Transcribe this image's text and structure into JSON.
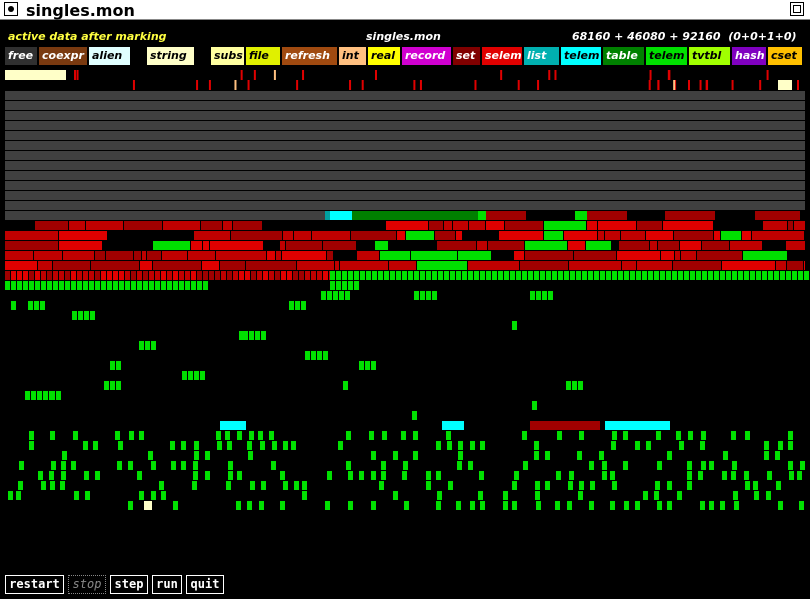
{
  "window": {
    "title": "singles.mon"
  },
  "status": {
    "phase": "active data after marking",
    "file": "singles.mon",
    "sizes": "68160 + 46080 + 92160  (0+0+1+0)"
  },
  "legend": [
    {
      "label": "free",
      "color": "#303030"
    },
    {
      "label": "coexpr",
      "color": "#7a3a10"
    },
    {
      "label": "alien",
      "color": "#e0ffff"
    },
    {
      "label": "string",
      "color": "#ffffc8"
    },
    {
      "label": "subs",
      "color": "#ffffa0"
    },
    {
      "label": "file",
      "color": "#e0f000"
    },
    {
      "label": "refresh",
      "color": "#a04a10"
    },
    {
      "label": "int",
      "color": "#ffc080"
    },
    {
      "label": "real",
      "color": "#ffff00"
    },
    {
      "label": "record",
      "color": "#d000d0"
    },
    {
      "label": "set",
      "color": "#800000"
    },
    {
      "label": "selem",
      "color": "#e00000"
    },
    {
      "label": "list",
      "color": "#00b0b0"
    },
    {
      "label": "telem",
      "color": "#00ffff"
    },
    {
      "label": "table",
      "color": "#008000"
    },
    {
      "label": "telem",
      "color": "#00e000"
    },
    {
      "label": "tvtbl",
      "color": "#a0ff00"
    },
    {
      "label": "hash",
      "color": "#8000c0"
    },
    {
      "label": "cset",
      "color": "#ffc000"
    }
  ],
  "buttons": [
    {
      "label": "restart",
      "enabled": true
    },
    {
      "label": "stop",
      "enabled": false
    },
    {
      "label": "step",
      "enabled": true
    },
    {
      "label": "run",
      "enabled": true
    },
    {
      "label": "quit",
      "enabled": true
    }
  ]
}
